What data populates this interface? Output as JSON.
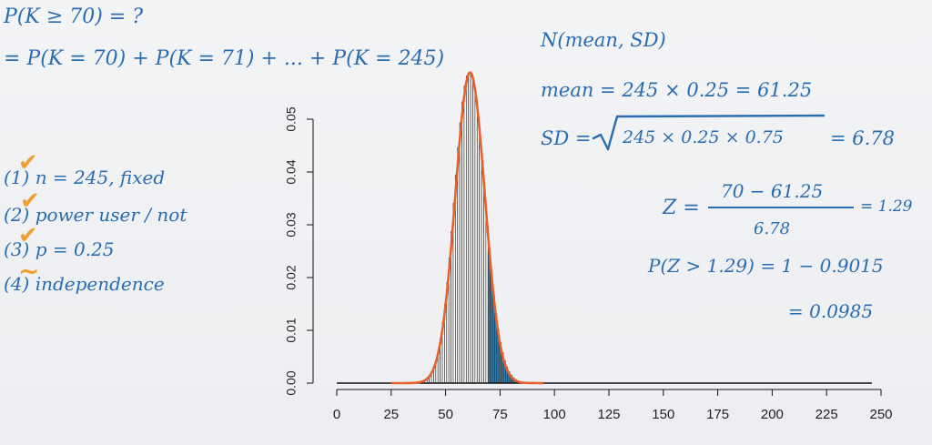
{
  "notes": {
    "line1": "P(K ≥ 70) = ?",
    "line2": "= P(K = 70) + P(K = 71) + ... + P(K = 245)",
    "normal": "N(mean, SD)",
    "mean": "mean = 245 × 0.25 = 61.25",
    "sd_left": "SD =",
    "sd_radicand": "245 × 0.25 × 0.75",
    "sd_right": "= 6.78",
    "z_label": "Z =",
    "z_num": "70 − 61.25",
    "z_den": "6.78",
    "z_val": "= 1.29",
    "pz": "P(Z > 1.29) = 1 − 0.9015",
    "pz2": "= 0.0985",
    "cond1": "(1) n = 245, fixed",
    "cond2": "(2) power user / not",
    "cond3": "(3) p = 0.25",
    "cond4": "(4) independence",
    "check_mark": "✔",
    "tilde_mark": "~"
  },
  "colors": {
    "ink": "#2a6cb0",
    "check": "#f0a030",
    "curve": "#e8602c",
    "bar": "#333333",
    "highlight": "#2f7fb0"
  },
  "chart_data": {
    "type": "bar",
    "distribution": "binomial",
    "n": 245,
    "p": 0.25,
    "overlay": "normal curve, mean 61.25, SD 6.78",
    "highlight_from": 70,
    "xlim": [
      0,
      250
    ],
    "ylim": [
      0,
      0.05
    ],
    "xticks": [
      0,
      25,
      50,
      75,
      100,
      125,
      150,
      175,
      200,
      225,
      250
    ],
    "yticks": [
      0.0,
      0.01,
      0.02,
      0.03,
      0.04,
      0.05
    ],
    "ytick_labels": [
      "0.00",
      "0.01",
      "0.02",
      "0.03",
      "0.04",
      "0.05"
    ]
  }
}
